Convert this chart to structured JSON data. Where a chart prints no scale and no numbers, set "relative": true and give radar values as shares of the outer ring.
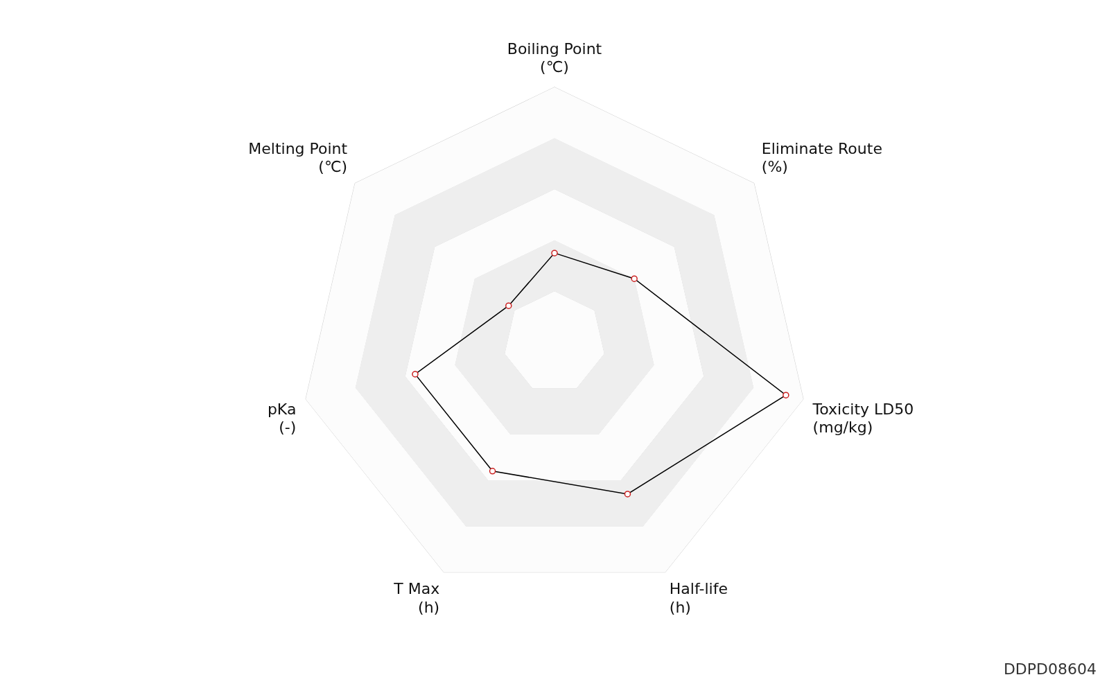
{
  "chart_data": {
    "type": "radar",
    "relative": true,
    "categories": [
      "Boiling Point\n(℃)",
      "Eliminate Route\n(%)",
      "Toxicity LD50\n(mg/kg)",
      "Half-life\n(h)",
      "T Max\n(h)",
      "pKa\n(-)",
      "Melting Point\n(℃)"
    ],
    "series": [
      {
        "color": "#000000",
        "values": [
          0.35,
          0.4,
          0.93,
          0.66,
          0.56,
          0.56,
          0.23
        ]
      }
    ],
    "marker": "circle",
    "legend": false,
    "annotations": [
      "DDPD08604"
    ]
  }
}
